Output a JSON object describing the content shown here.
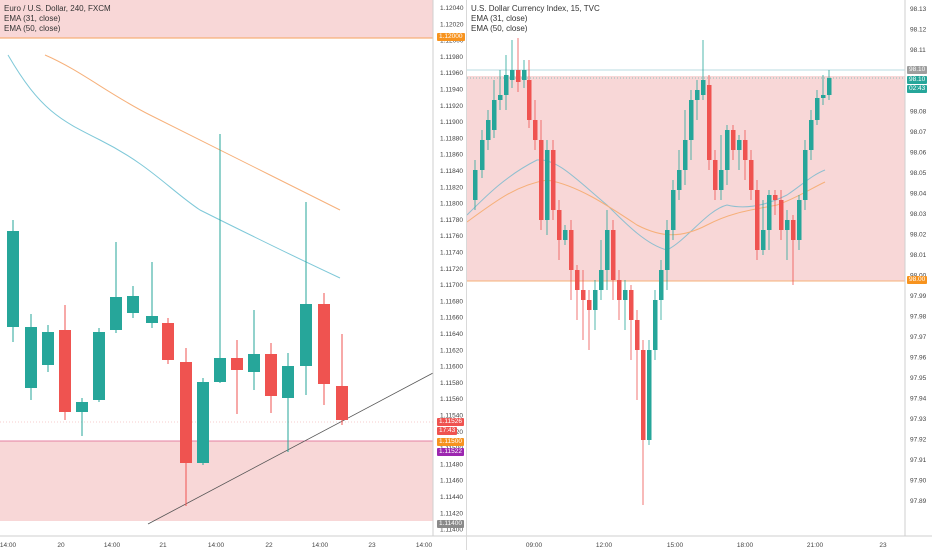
{
  "left_chart": {
    "title": "Euro / U.S. Dollar, 240, FXCM",
    "ema31_label": "EMA (31, close)",
    "ema50_label": "EMA (50, close)",
    "y_ticks": [
      "1.12040",
      "1.12020",
      "1.12000",
      "1.11980",
      "1.11960",
      "1.11940",
      "1.11920",
      "1.11900",
      "1.11880",
      "1.11860",
      "1.11840",
      "1.11820",
      "1.11800",
      "1.11780",
      "1.11760",
      "1.11740",
      "1.11720",
      "1.11700",
      "1.11680",
      "1.11660",
      "1.11640",
      "1.11620",
      "1.11600",
      "1.11580",
      "1.11560",
      "1.11540",
      "1.11520",
      "1.11500",
      "1.11480",
      "1.11460",
      "1.11440",
      "1.11420",
      "1.11400"
    ],
    "x_ticks": [
      "14:00",
      "20",
      "14:00",
      "21",
      "14:00",
      "22",
      "14:00",
      "23",
      "14:00"
    ],
    "tags": {
      "level_high": "1.12000",
      "price": "1.11526",
      "countdown": "17:43",
      "level_low": "1.11500",
      "purple": "1.11522",
      "bottom": "1.11400"
    },
    "colors": {
      "up": "#26a69a",
      "down": "#ef5350",
      "zone": "#f8d7d7",
      "ema31": "#7ec8d8",
      "ema50": "#f6b07a"
    }
  },
  "right_chart": {
    "title": "U.S. Dollar Currency Index, 15, TVC",
    "ema31_label": "EMA (31, close)",
    "ema50_label": "EMA (50, close)",
    "y_ticks": [
      "98.13",
      "98.12",
      "98.11",
      "98.10",
      "98.09",
      "98.08",
      "98.07",
      "98.06",
      "98.05",
      "98.04",
      "98.03",
      "98.02",
      "98.01",
      "98.00",
      "97.99",
      "97.98",
      "97.97",
      "97.96",
      "97.95",
      "97.94",
      "97.93",
      "97.92",
      "97.91",
      "97.90",
      "97.89"
    ],
    "x_ticks": [
      "09:00",
      "12:00",
      "15:00",
      "18:00",
      "21:00",
      "23"
    ],
    "tags": {
      "price": "98.10",
      "countdown": "02:43",
      "top_level": "98.10",
      "bottom_level": "98.00"
    }
  }
}
